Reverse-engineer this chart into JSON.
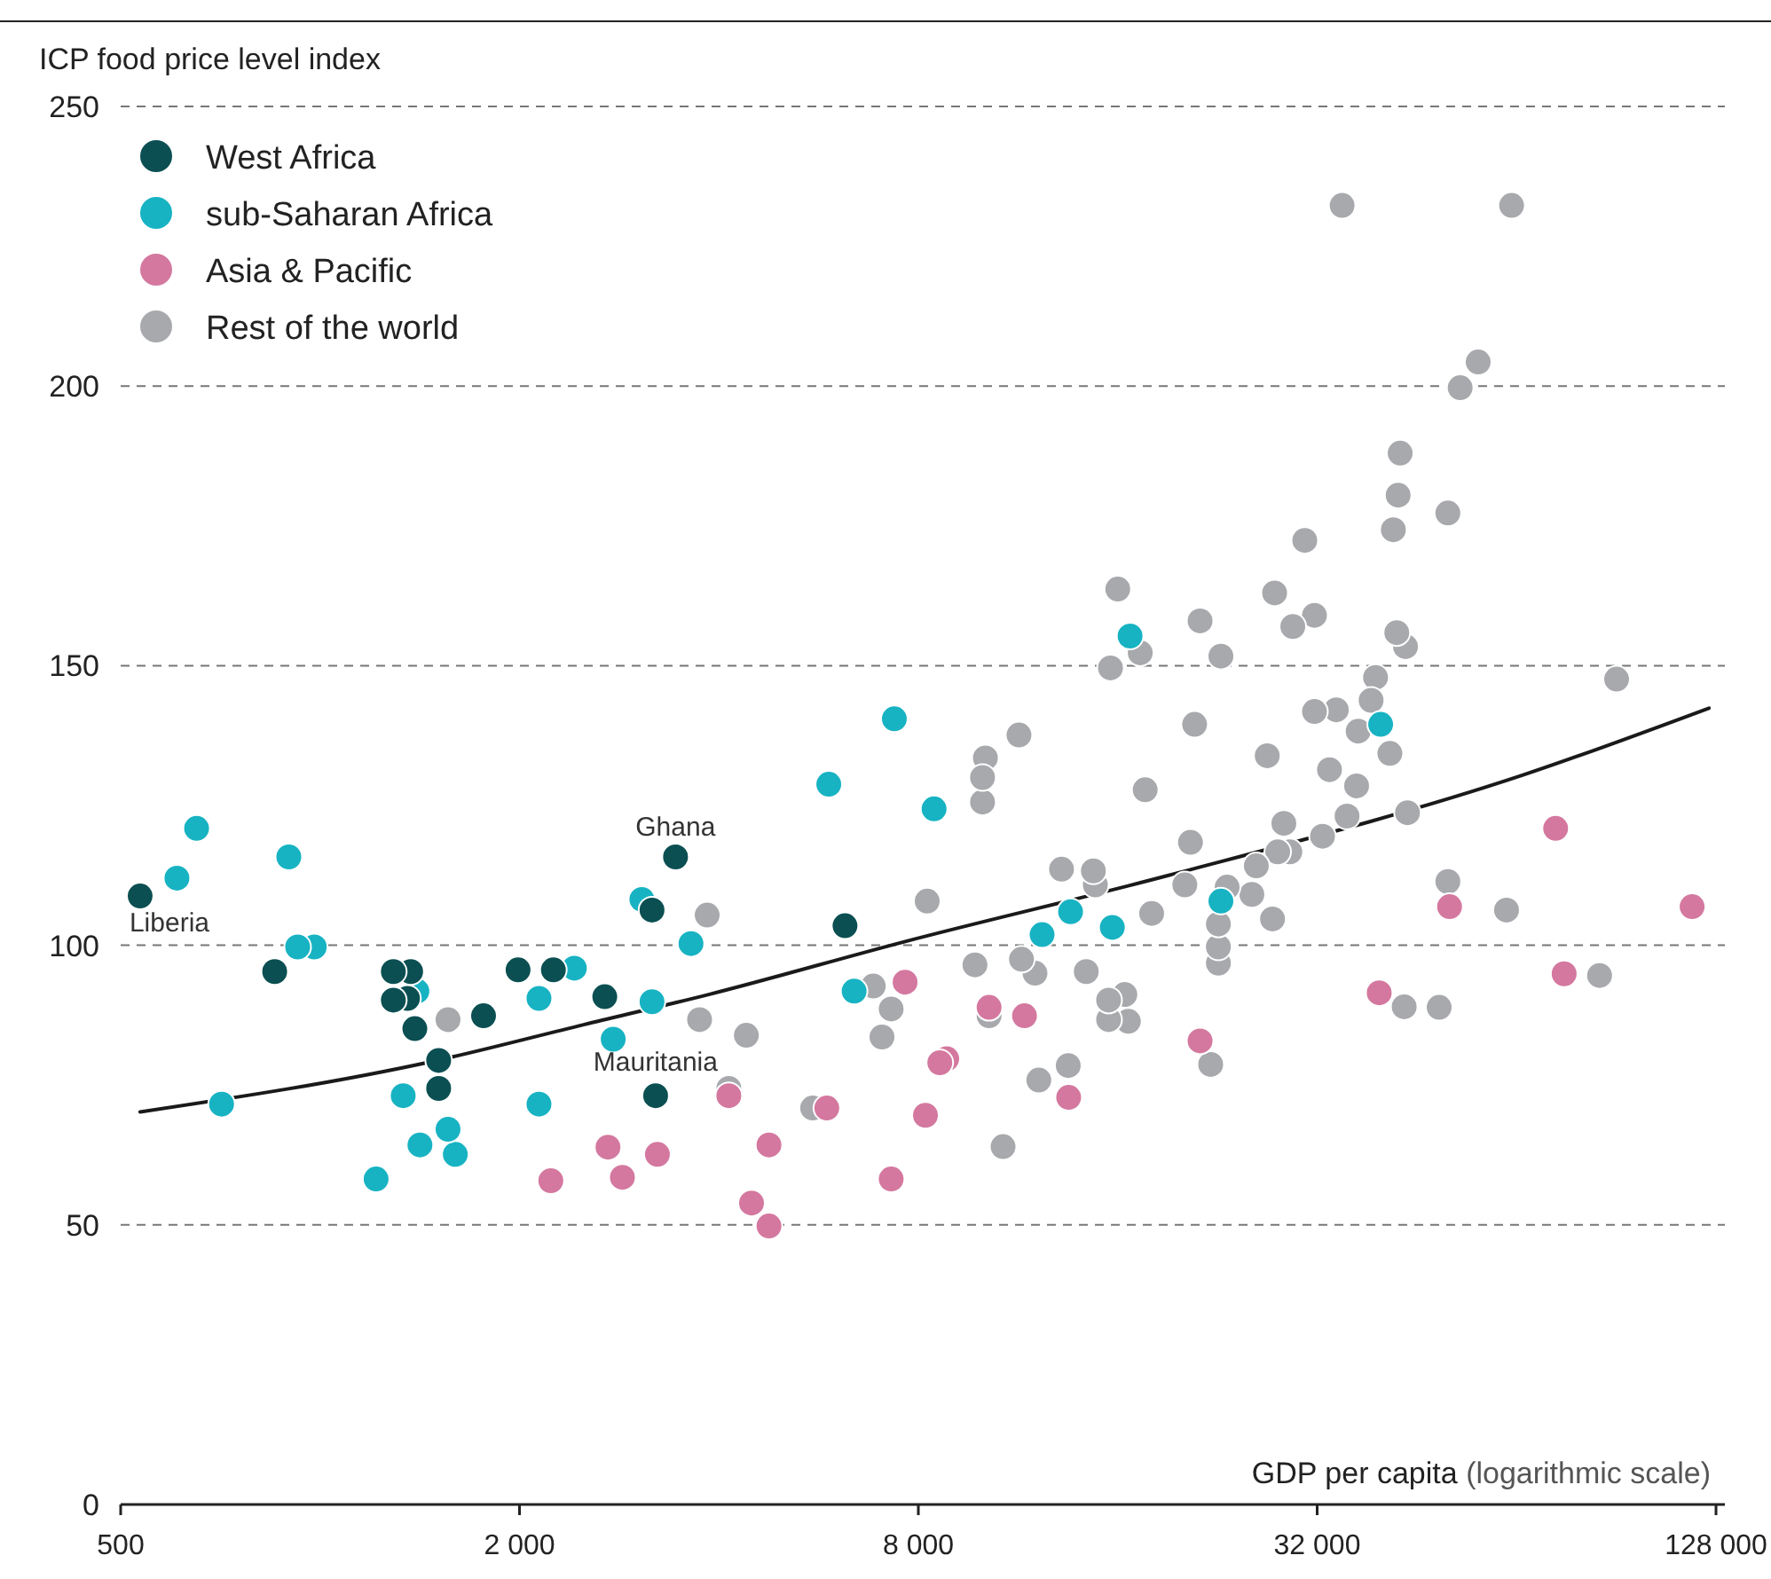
{
  "chart_data": {
    "type": "scatter",
    "ylabel": "ICP food price level index",
    "xlabel": "GDP per capita (logarithmic scale)",
    "log": "x",
    "xlim": [
      500,
      132000
    ],
    "xticks": [
      {
        "value": 500,
        "label": "500"
      },
      {
        "value": 2000,
        "label": "2 000"
      },
      {
        "value": 8000,
        "label": "8 000"
      },
      {
        "value": 32000,
        "label": "32 000"
      },
      {
        "value": 128000,
        "label": "128 000"
      }
    ],
    "ylim": [
      0,
      250
    ],
    "yticks": [
      0,
      50,
      100,
      150,
      200,
      250
    ],
    "grid": "y",
    "legend": "top left",
    "marker": "circle",
    "series": [
      {
        "name": "West Africa",
        "color": "#0b4f52",
        "x": [
          535,
          854,
          1290,
          1370,
          1290,
          1355,
          1390,
          1510,
          1510,
          1765,
          1990,
          2250,
          2690,
          3440,
          3170,
          3210,
          6200
        ],
        "values": [
          108.8,
          95.3,
          95.3,
          95.3,
          90.2,
          90.5,
          85.1,
          79.4,
          74.4,
          87.4,
          95.6,
          95.6,
          90.8,
          115.8,
          106.3,
          73.1,
          103.5
        ]
      },
      {
        "name": "sub-Saharan Africa",
        "color": "#17b3c3",
        "x": [
          651,
          897,
          608,
          925,
          980,
          710,
          1400,
          2420,
          2140,
          3170,
          2770,
          3060,
          3630,
          1335,
          1560,
          1415,
          1600,
          1215,
          2140,
          7360,
          5860,
          8450,
          6400,
          12300,
          13580,
          15700,
          16700,
          39900,
          22900
        ],
        "values": [
          120.9,
          115.8,
          112,
          99.7,
          99.7,
          71.6,
          91.8,
          95.9,
          90.5,
          89.9,
          83.2,
          108.2,
          100.3,
          73.1,
          67.1,
          64.3,
          62.6,
          58.2,
          71.6,
          140.5,
          128.8,
          124.4,
          91.8,
          101.9,
          106,
          103.2,
          155.3,
          139.5,
          107.9
        ]
      },
      {
        "name": "Asia & Pacific",
        "color": "#d4789f",
        "x": [
          2720,
          2860,
          3230,
          2230,
          4140,
          5820,
          4760,
          4480,
          4760,
          7280,
          7640,
          8200,
          8620,
          8830,
          10230,
          11570,
          13490,
          21300,
          39700,
          50700,
          73300,
          75500,
          117800
        ],
        "values": [
          63.9,
          58.5,
          62.6,
          57.9,
          73.1,
          70.9,
          64.3,
          53.9,
          49.8,
          58.2,
          93.4,
          69.6,
          79,
          79.7,
          88.9,
          87.4,
          72.8,
          82.9,
          91.5,
          106.9,
          120.9,
          94.9,
          106.9
        ]
      },
      {
        "name": "Rest of the world",
        "color": "#a7a9ac",
        "x": [
          1560,
          3840,
          3740,
          4400,
          4140,
          5540,
          6840,
          7280,
          7050,
          8250,
          9740,
          10000,
          10000,
          10100,
          10230,
          10740,
          11350,
          11450,
          12000,
          12160,
          13160,
          13470,
          14340,
          14700,
          14800,
          15500,
          15500,
          16400,
          16600,
          18000,
          17600,
          16000,
          17300,
          15600,
          21300,
          20900,
          20600,
          20200,
          22900,
          23400,
          22700,
          22700,
          22700,
          22100,
          25500,
          25900,
          27600,
          27400,
          26900,
          27900,
          28500,
          29100,
          29400,
          30650,
          31700,
          31700,
          32600,
          33400,
          34200,
          34900,
          35500,
          36700,
          36900,
          38600,
          39200,
          41200,
          41700,
          42200,
          43500,
          42400,
          42700,
          43300,
          43800,
          48900,
          50400,
          50400,
          52600,
          56000,
          61800,
          62900,
          85400,
          90600
        ],
        "values": [
          86.7,
          105.4,
          86.7,
          83.9,
          74.4,
          70.9,
          92.7,
          88.6,
          83.6,
          107.9,
          96.5,
          130,
          125.6,
          133.5,
          87.4,
          64,
          137.6,
          97.5,
          95,
          75.9,
          113.6,
          78.5,
          95.3,
          113.3,
          110.8,
          90.2,
          86.7,
          91.2,
          86.4,
          105.7,
          127.8,
          163.7,
          152.3,
          149.6,
          158,
          139.5,
          118.4,
          110.8,
          151.7,
          110.4,
          103.8,
          99.7,
          96.8,
          78.7,
          109.1,
          114.2,
          163,
          104.7,
          133.9,
          116.7,
          121.8,
          116.7,
          157,
          172.4,
          159,
          141.8,
          119.5,
          131.4,
          142.1,
          232.3,
          123.1,
          128.5,
          138.3,
          143.8,
          147.9,
          134.3,
          174.3,
          155.9,
          153.4,
          180.5,
          188,
          89,
          123.7,
          88.9,
          111.4,
          177.3,
          199.7,
          204.3,
          106.3,
          232.3,
          94.6,
          147.6
        ]
      },
      {
        "type": "line",
        "color": "#1a1a1a",
        "x": [
          535,
          1500,
          2500,
          3860,
          7600,
          19100,
          65300,
          124900
        ],
        "values": [
          70.2,
          79.4,
          85.8,
          91.2,
          100.6,
          112.5,
          130.4,
          142.4
        ],
        "line_style": "solid",
        "marker": "none"
      }
    ],
    "annotations": [
      {
        "text": "Liberia",
        "x": 535,
        "y": 108.8
      },
      {
        "text": "Ghana",
        "x": 3440,
        "y": 115.8
      },
      {
        "text": "Mauritania",
        "x": 3210,
        "y": 73.1
      }
    ]
  }
}
